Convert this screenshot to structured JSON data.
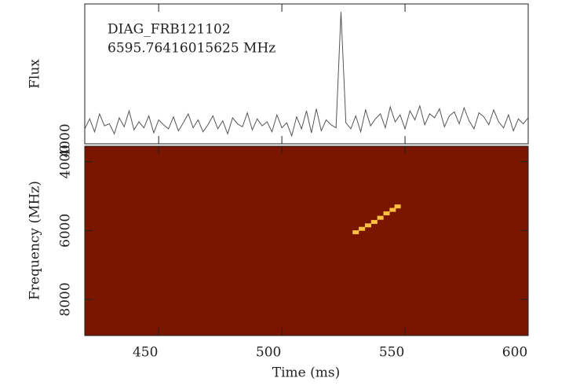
{
  "chart_data": [
    {
      "type": "line",
      "annotations": [
        "DIAG_FRB121102",
        "6595.76416015625 MHz"
      ],
      "ylabel": "Flux",
      "x": [
        420,
        422,
        424,
        426,
        428,
        430,
        432,
        434,
        436,
        438,
        440,
        442,
        444,
        446,
        448,
        450,
        452,
        454,
        456,
        458,
        460,
        462,
        464,
        466,
        468,
        470,
        472,
        474,
        476,
        478,
        480,
        482,
        484,
        486,
        488,
        490,
        492,
        494,
        496,
        498,
        500,
        502,
        504,
        506,
        508,
        510,
        512,
        514,
        516,
        518,
        520,
        522,
        524,
        526,
        528,
        530,
        532,
        534,
        536,
        538,
        540,
        542,
        544,
        546,
        548,
        550,
        552,
        554,
        556,
        558,
        560,
        562,
        564,
        566,
        568,
        570,
        572,
        574,
        576,
        578,
        580,
        582,
        584,
        586,
        588,
        590,
        592,
        594,
        596,
        598,
        600
      ],
      "values": [
        4150,
        4250,
        4120,
        4300,
        4180,
        4200,
        4100,
        4260,
        4170,
        4330,
        4140,
        4220,
        4160,
        4280,
        4110,
        4240,
        4190,
        4150,
        4270,
        4130,
        4210,
        4300,
        4160,
        4240,
        4120,
        4190,
        4280,
        4150,
        4230,
        4100,
        4260,
        4200,
        4170,
        4310,
        4140,
        4250,
        4180,
        4220,
        4120,
        4290,
        4160,
        4210,
        4080,
        4270,
        4150,
        4330,
        4110,
        4350,
        4130,
        4240,
        4190,
        4160,
        5320,
        4210,
        4150,
        4280,
        4120,
        4340,
        4180,
        4250,
        4300,
        4160,
        4370,
        4220,
        4290,
        4150,
        4330,
        4240,
        4380,
        4190,
        4300,
        4260,
        4350,
        4170,
        4280,
        4320,
        4200,
        4360,
        4230,
        4150,
        4310,
        4270,
        4190,
        4340,
        4220,
        4160,
        4290,
        4130,
        4250,
        4200,
        4260
      ],
      "color": "#555555",
      "xlim": [
        420,
        600
      ],
      "xticks": [
        450,
        500,
        550,
        600
      ],
      "ylim": [
        4000,
        5400
      ],
      "yticks": [
        4000
      ]
    },
    {
      "type": "heatmap",
      "xlabel": "Time (ms)",
      "ylabel": "Frequency (MHz)",
      "background_color": "#7a1600",
      "x": [
        530,
        532.5,
        535,
        537.5,
        540,
        542.5,
        545,
        547
      ],
      "y": [
        6050,
        5950,
        5850,
        5750,
        5630,
        5500,
        5400,
        5300
      ],
      "color": "#ffc040",
      "xlim": [
        420,
        600
      ],
      "xticks": [
        450,
        500,
        550,
        600
      ],
      "ylim": [
        3550,
        9050
      ],
      "yticks": [
        4000,
        6000,
        8000
      ]
    }
  ]
}
